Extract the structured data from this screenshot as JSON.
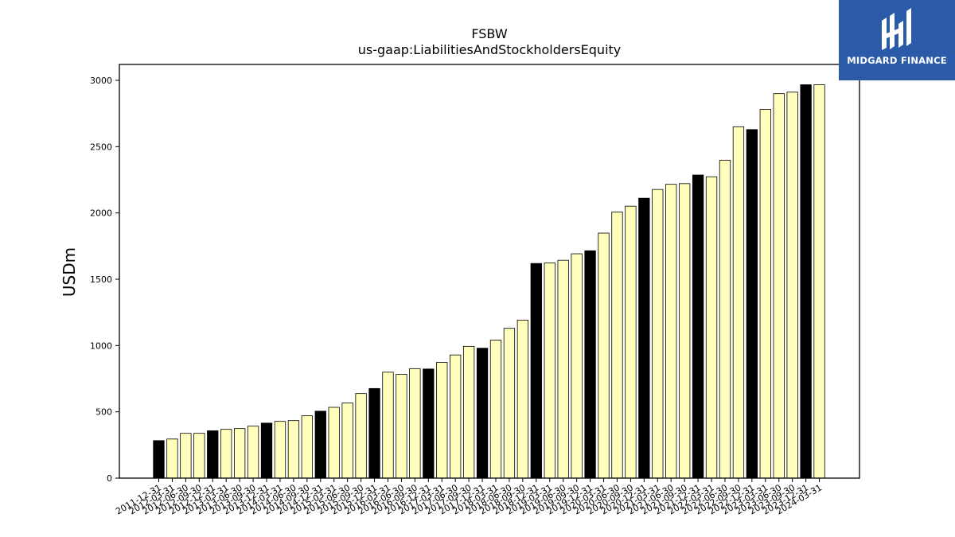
{
  "chart_data": {
    "type": "bar",
    "title": "FSBW",
    "subtitle": "us-gaap:LiabilitiesAndStockholdersEquity",
    "xlabel": "",
    "ylabel": "USDm",
    "ylim": [
      0,
      3120
    ],
    "yticks": [
      0,
      500,
      1000,
      1500,
      2000,
      2500,
      3000
    ],
    "grid": false,
    "categories": [
      "2011-12-31",
      "2012-03-31",
      "2012-06-30",
      "2012-09-30",
      "2012-12-31",
      "2013-03-31",
      "2013-06-30",
      "2013-09-30",
      "2013-12-31",
      "2014-03-31",
      "2014-06-30",
      "2014-09-30",
      "2014-12-31",
      "2015-03-31",
      "2015-06-30",
      "2015-09-30",
      "2015-12-31",
      "2016-03-31",
      "2016-06-30",
      "2016-09-30",
      "2016-12-31",
      "2017-03-31",
      "2017-06-30",
      "2017-09-30",
      "2017-12-31",
      "2018-03-31",
      "2018-06-30",
      "2018-09-30",
      "2018-12-31",
      "2019-03-31",
      "2019-06-30",
      "2019-09-30",
      "2019-12-31",
      "2020-03-31",
      "2020-06-30",
      "2020-09-30",
      "2020-12-31",
      "2021-03-31",
      "2021-06-30",
      "2021-09-30",
      "2021-12-31",
      "2022-03-31",
      "2022-06-30",
      "2022-09-30",
      "2022-12-31",
      "2023-03-31",
      "2023-06-30",
      "2023-09-30",
      "2023-12-31",
      "2024-03-31"
    ],
    "values": [
      283,
      295,
      338,
      338,
      357,
      368,
      374,
      392,
      415,
      428,
      434,
      470,
      505,
      534,
      567,
      638,
      676,
      799,
      783,
      826,
      823,
      873,
      929,
      994,
      980,
      1041,
      1130,
      1192,
      1619,
      1623,
      1643,
      1692,
      1715,
      1848,
      2007,
      2051,
      2111,
      2177,
      2216,
      2221,
      2286,
      2273,
      2398,
      2650,
      2629,
      2781,
      2900,
      2911,
      2967,
      2967
    ],
    "bar_colors": {
      "year_end": "#000000",
      "quarter": "#ffffbb"
    },
    "highlight": [
      true,
      false,
      false,
      false,
      true,
      false,
      false,
      false,
      true,
      false,
      false,
      false,
      true,
      false,
      false,
      false,
      true,
      false,
      false,
      false,
      true,
      false,
      false,
      false,
      true,
      false,
      false,
      false,
      true,
      false,
      false,
      false,
      true,
      false,
      false,
      false,
      true,
      false,
      false,
      false,
      true,
      false,
      false,
      false,
      true,
      false,
      false,
      false,
      true,
      false
    ]
  },
  "logo": {
    "text": "MIDGARD FINANCE",
    "background": "#2b5aa8"
  }
}
